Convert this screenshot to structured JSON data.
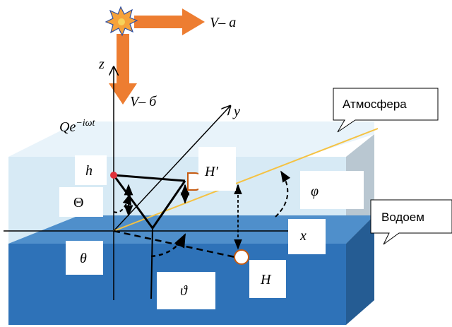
{
  "labels": {
    "V_a": "V– a",
    "V_b": "V– б",
    "z": "z",
    "y": "y",
    "x": "x",
    "Q": "Qe",
    "Q_exp": "−iωt",
    "h": "h",
    "H_prime": "H′",
    "Theta": "Θ",
    "phi": "φ",
    "theta": "θ",
    "vartheta": "ϑ",
    "H": "H"
  },
  "callouts": {
    "atmosphere": "Атмосфера",
    "water": "Водоем"
  },
  "colors": {
    "atmosphere_front": "#d7eaf5",
    "atmosphere_top": "#e6f2f9",
    "atmosphere_side": "#b9c7d1",
    "water_top": "#4f8fcb",
    "water_front": "#2e72b8",
    "water_side": "#255c93",
    "arrow_orange": "#ed7d31",
    "yellow_line": "#f5c242",
    "source_red": "#e0303a",
    "receiver_outline": "#c55a11"
  }
}
